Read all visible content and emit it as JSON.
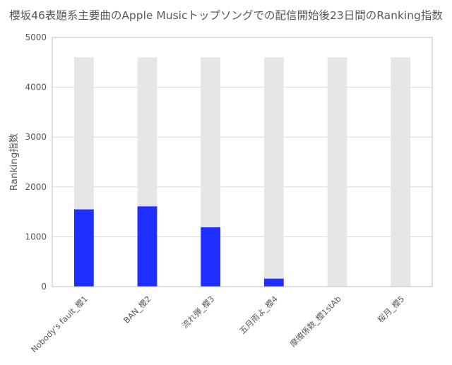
{
  "chart_data": {
    "type": "bar",
    "title": "櫻坂46表題系主要曲のApple Musicトップソングでの配信開始後23日間のRanking指数",
    "xlabel": "",
    "ylabel": "Ranking指数",
    "ylim": [
      0,
      5000
    ],
    "yticks": [
      0,
      1000,
      2000,
      3000,
      4000,
      5000
    ],
    "grid": true,
    "legend": "none",
    "categories": [
      "Nobody's fault_櫻1",
      "BAN_櫻2",
      "流れ弾_櫻3",
      "五月雨よ_櫻4",
      "摩擦係数_櫻1stAb",
      "桜月_櫻5"
    ],
    "series": [
      {
        "values": [
          4600,
          4600,
          4600,
          4600,
          4600,
          4600
        ],
        "color": "#e6e6e6"
      },
      {
        "values": [
          1550,
          1610,
          1190,
          160,
          0,
          0
        ],
        "color": "#1f2fff"
      }
    ]
  }
}
